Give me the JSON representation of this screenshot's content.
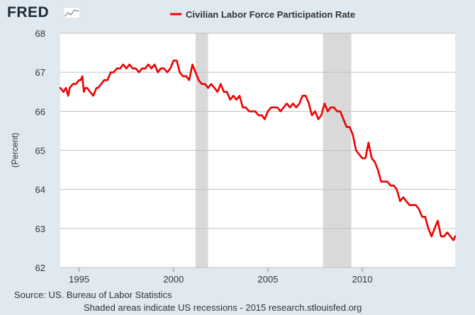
{
  "brand": {
    "logo_text": "FRED",
    "logo_icon": "chart-line-icon"
  },
  "colors": {
    "series": "#ee0000",
    "recession": "#d9d9d9",
    "grid": "#c0c0c0",
    "background": "#e1e9f0"
  },
  "footer": {
    "source": "Source: US. Bureau of Labor Statistics",
    "note": "Shaded areas indicate US recessions - 2015 research.stlouisfed.org"
  },
  "chart_data": {
    "type": "line",
    "title": "",
    "xlabel": "",
    "ylabel": "(Percent)",
    "xlim": [
      1994.0,
      2014.92
    ],
    "ylim": [
      62,
      68
    ],
    "grid": true,
    "legend_position": "top",
    "x_ticks": [
      {
        "value": 1995,
        "label": "1995"
      },
      {
        "value": 2000,
        "label": "2000"
      },
      {
        "value": 2005,
        "label": "2005"
      },
      {
        "value": 2010,
        "label": "2010"
      }
    ],
    "y_ticks": [
      {
        "value": 62,
        "label": "62"
      },
      {
        "value": 63,
        "label": "63"
      },
      {
        "value": 64,
        "label": "64"
      },
      {
        "value": 65,
        "label": "65"
      },
      {
        "value": 66,
        "label": "66"
      },
      {
        "value": 67,
        "label": "67"
      },
      {
        "value": 68,
        "label": "68"
      }
    ],
    "recessions": [
      {
        "start": 2001.17,
        "end": 2001.83
      },
      {
        "start": 2007.92,
        "end": 2009.42
      }
    ],
    "series": [
      {
        "name": "Civilian Labor Force Participation Rate",
        "color": "#ee0000",
        "x": [
          1994.0,
          1994.17,
          1994.3,
          1994.42,
          1994.5,
          1994.67,
          1994.83,
          1995.0,
          1995.08,
          1995.17,
          1995.25,
          1995.33,
          1995.42,
          1995.58,
          1995.75,
          1995.92,
          1996.0,
          1996.17,
          1996.33,
          1996.5,
          1996.67,
          1996.83,
          1997.0,
          1997.17,
          1997.33,
          1997.5,
          1997.67,
          1997.83,
          1998.0,
          1998.17,
          1998.33,
          1998.5,
          1998.67,
          1998.83,
          1999.0,
          1999.17,
          1999.33,
          1999.5,
          1999.67,
          1999.83,
          2000.0,
          2000.17,
          2000.33,
          2000.5,
          2000.67,
          2000.83,
          2001.0,
          2001.08,
          2001.17,
          2001.33,
          2001.5,
          2001.67,
          2001.83,
          2002.0,
          2002.17,
          2002.33,
          2002.5,
          2002.67,
          2002.83,
          2003.0,
          2003.17,
          2003.33,
          2003.5,
          2003.67,
          2003.83,
          2004.0,
          2004.17,
          2004.33,
          2004.5,
          2004.67,
          2004.83,
          2005.0,
          2005.17,
          2005.33,
          2005.5,
          2005.67,
          2005.83,
          2006.0,
          2006.17,
          2006.33,
          2006.5,
          2006.67,
          2006.83,
          2007.0,
          2007.17,
          2007.33,
          2007.5,
          2007.67,
          2007.83,
          2008.0,
          2008.17,
          2008.33,
          2008.5,
          2008.67,
          2008.83,
          2009.0,
          2009.17,
          2009.33,
          2009.5,
          2009.67,
          2009.83,
          2010.0,
          2010.17,
          2010.33,
          2010.5,
          2010.67,
          2010.83,
          2011.0,
          2011.17,
          2011.33,
          2011.5,
          2011.67,
          2011.83,
          2012.0,
          2012.17,
          2012.33,
          2012.5,
          2012.67,
          2012.83,
          2013.0,
          2013.17,
          2013.33,
          2013.5,
          2013.67,
          2013.83,
          2014.0,
          2014.17,
          2014.33,
          2014.5,
          2014.67,
          2014.83,
          2014.92
        ],
        "values": [
          66.6,
          66.5,
          66.6,
          66.4,
          66.6,
          66.7,
          66.7,
          66.8,
          66.8,
          66.9,
          66.5,
          66.6,
          66.6,
          66.5,
          66.4,
          66.6,
          66.6,
          66.7,
          66.8,
          66.8,
          67.0,
          67.0,
          67.1,
          67.1,
          67.2,
          67.1,
          67.2,
          67.1,
          67.1,
          67.0,
          67.1,
          67.1,
          67.2,
          67.1,
          67.2,
          67.0,
          67.1,
          67.1,
          67.0,
          67.1,
          67.3,
          67.3,
          67.0,
          66.9,
          66.9,
          66.8,
          67.2,
          67.1,
          67.0,
          66.8,
          66.7,
          66.7,
          66.6,
          66.7,
          66.6,
          66.5,
          66.7,
          66.5,
          66.5,
          66.3,
          66.4,
          66.3,
          66.4,
          66.1,
          66.1,
          66.0,
          66.0,
          66.0,
          65.9,
          65.9,
          65.8,
          66.0,
          66.1,
          66.1,
          66.1,
          66.0,
          66.1,
          66.2,
          66.1,
          66.2,
          66.1,
          66.2,
          66.4,
          66.4,
          66.2,
          65.9,
          66.0,
          65.8,
          65.9,
          66.2,
          66.0,
          66.1,
          66.1,
          66.0,
          66.0,
          65.8,
          65.6,
          65.6,
          65.4,
          65.0,
          64.9,
          64.8,
          64.8,
          65.2,
          64.8,
          64.7,
          64.5,
          64.2,
          64.2,
          64.2,
          64.1,
          64.1,
          64.0,
          63.7,
          63.8,
          63.7,
          63.6,
          63.6,
          63.6,
          63.5,
          63.3,
          63.3,
          63.0,
          62.8,
          63.0,
          63.2,
          62.8,
          62.8,
          62.9,
          62.8,
          62.7,
          62.8
        ]
      }
    ]
  }
}
